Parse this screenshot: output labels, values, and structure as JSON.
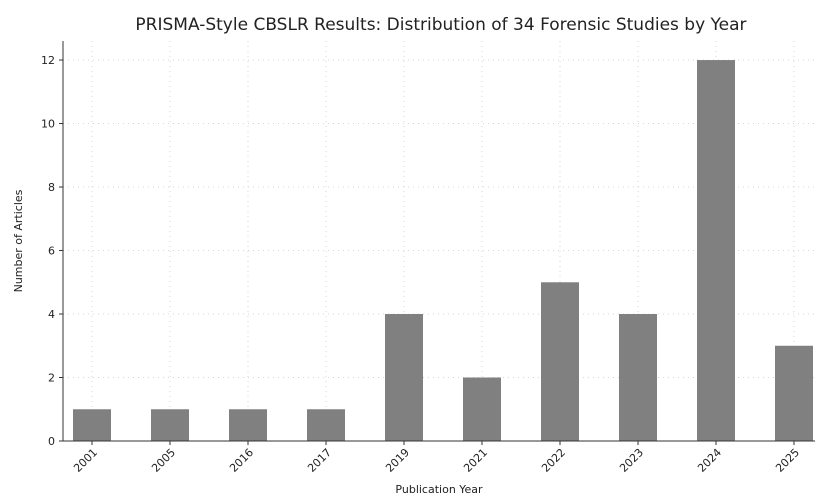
{
  "chart_data": {
    "type": "bar",
    "title": "PRISMA-Style CBSLR Results: Distribution of 34 Forensic Studies by Year",
    "xlabel": "Publication Year",
    "ylabel": "Number of Articles",
    "categories": [
      "2001",
      "2005",
      "2016",
      "2017",
      "2019",
      "2021",
      "2022",
      "2023",
      "2024",
      "2025"
    ],
    "values": [
      1,
      1,
      1,
      1,
      4,
      2,
      5,
      4,
      12,
      3
    ],
    "ylim": [
      0,
      12.6
    ],
    "yticks": [
      "0",
      "2",
      "4",
      "6",
      "8",
      "10",
      "12"
    ],
    "grid": true,
    "legend": "none",
    "bar_color": "#808080"
  }
}
